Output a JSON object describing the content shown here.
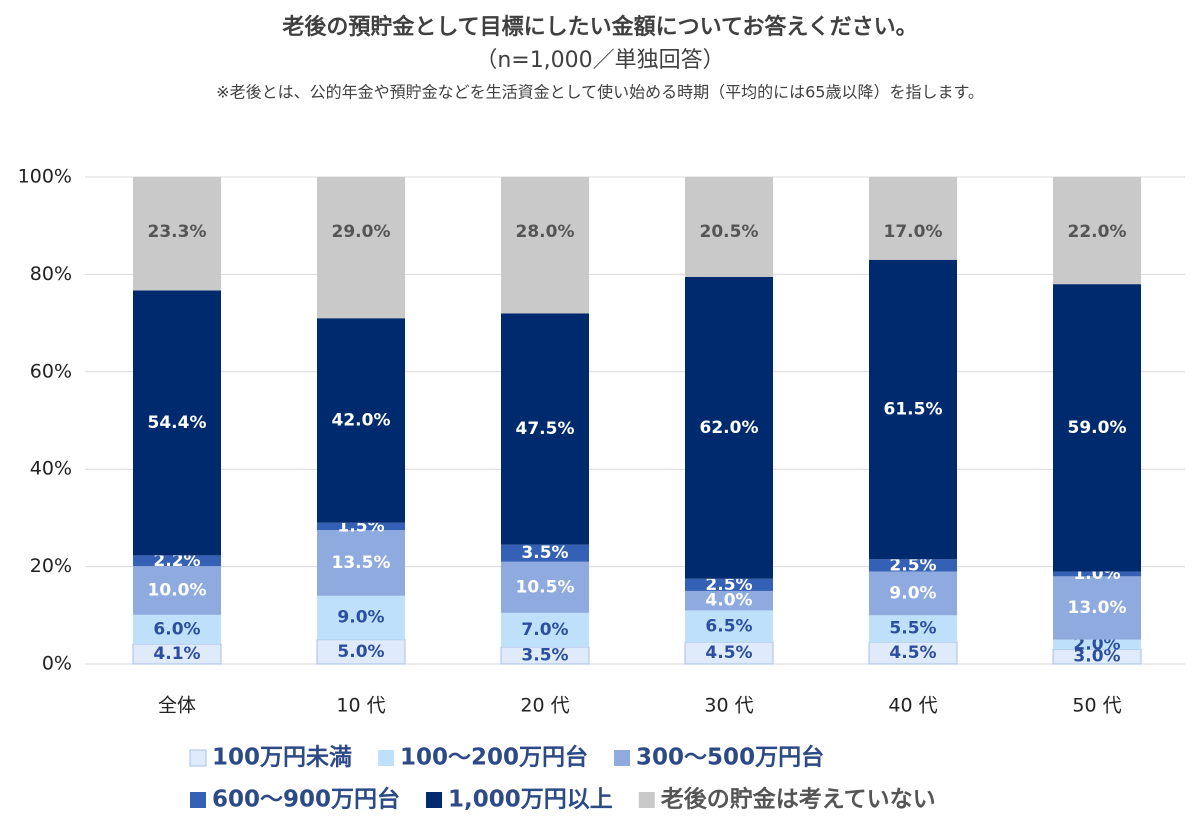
{
  "chart_data": {
    "type": "stacked_bar",
    "title": "老後の預貯金として目標にしたい金額についてお答えください。",
    "subtitle": "（n=1,000／単独回答）",
    "note": "※老後とは、公的年金や預貯金などを生活資金として使い始める時期（平均的には65歳以降）を指します。",
    "categories": [
      "全体",
      "10 代",
      "20 代",
      "30 代",
      "40 代",
      "50 代"
    ],
    "series": [
      {
        "name": "100万円未満",
        "color": "#dfeafa",
        "edge_color": "#a8c0e8",
        "label_color": "#2b4f9e",
        "values": [
          4.1,
          5.0,
          3.5,
          4.5,
          4.5,
          3.0
        ],
        "value_labels": [
          "4.1%",
          "5.0%",
          "3.5%",
          "4.5%",
          "4.5%",
          "3.0%"
        ]
      },
      {
        "name": "100～200万円台",
        "color": "#bfe0fb",
        "label_color": "#2b4f9e",
        "values": [
          6.0,
          9.0,
          7.0,
          6.5,
          5.5,
          2.0
        ],
        "value_labels": [
          "6.0%",
          "9.0%",
          "7.0%",
          "6.5%",
          "5.5%",
          "2.0%"
        ]
      },
      {
        "name": "300～500万円台",
        "color": "#8eaadf",
        "label_color": "#ffffff",
        "values": [
          10.0,
          13.5,
          10.5,
          4.0,
          9.0,
          13.0
        ],
        "value_labels": [
          "10.0%",
          "13.5%",
          "10.5%",
          "4.0%",
          "9.0%",
          "13.0%"
        ]
      },
      {
        "name": "600～900万円台",
        "color": "#3461b5",
        "label_color": "#ffffff",
        "values": [
          2.2,
          1.5,
          3.5,
          2.5,
          2.5,
          1.0
        ],
        "value_labels": [
          "2.2%",
          "1.5%",
          "3.5%",
          "2.5%",
          "2.5%",
          "1.0%"
        ]
      },
      {
        "name": "1,000万円以上",
        "color": "#002a6e",
        "label_color": "#ffffff",
        "values": [
          54.4,
          42.0,
          47.5,
          62.0,
          61.5,
          59.0
        ],
        "value_labels": [
          "54.4%",
          "42.0%",
          "47.5%",
          "62.0%",
          "61.5%",
          "59.0%"
        ]
      },
      {
        "name": "老後の貯金は考えていない",
        "color": "#c9c9c9",
        "label_color": "#555555",
        "values": [
          23.3,
          29.0,
          28.0,
          20.5,
          17.0,
          22.0
        ],
        "value_labels": [
          "23.3%",
          "29.0%",
          "28.0%",
          "20.5%",
          "17.0%",
          "22.0%"
        ]
      }
    ],
    "ylim": [
      0,
      100
    ],
    "yticks": [
      {
        "value": 0,
        "label": "0%"
      },
      {
        "value": 20,
        "label": "20%"
      },
      {
        "value": 40,
        "label": "40%"
      },
      {
        "value": 60,
        "label": "60%"
      },
      {
        "value": 80,
        "label": "80%"
      },
      {
        "value": 100,
        "label": "100%"
      }
    ],
    "grid": true
  }
}
